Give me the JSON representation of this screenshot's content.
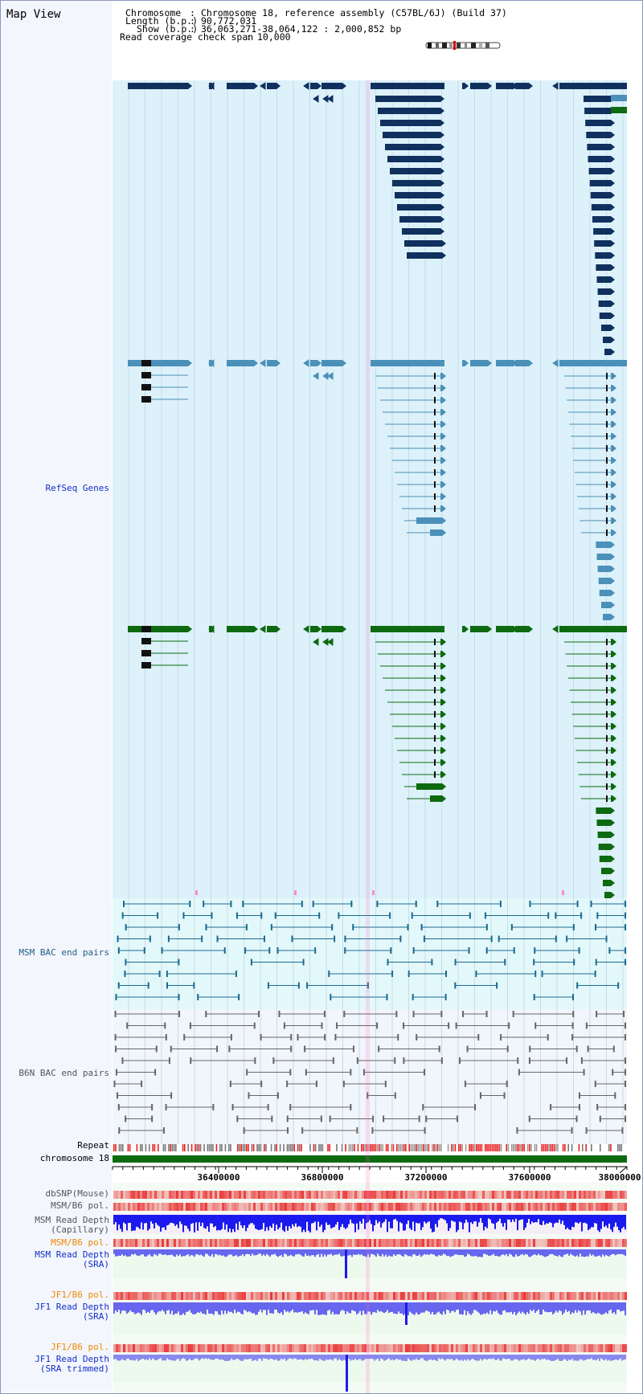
{
  "app": {
    "title": "Map View"
  },
  "header": {
    "chromosome_key": "Chromosome",
    "chromosome_value": "Chromosome 18, reference assembly (C57BL/6J) (Build 37)",
    "length_key": "Length (b.p.)",
    "length_value": "90,772,031",
    "show_key": "Show (b.p.)",
    "show_value": "36,063,271-38,064,122 : 2,000,852 bp",
    "coverage_key": "Read coverage check span",
    "coverage_value": "10,000"
  },
  "tracks": {
    "refseq": "RefSeq Genes",
    "msm_bac": "MSM BAC end pairs",
    "b6n_bac": "B6N BAC end pairs",
    "repeat": "Repeat",
    "chromosome": "chromosome 18",
    "dbsnp": "dbSNP(Mouse)",
    "msm_b6_pol": "MSM/B6 pol.",
    "msm_depth_cap": "MSM Read Depth\n(Capillary)",
    "msm_b6_pol_2": "MSM/B6 pol.",
    "msm_depth_sra": "MSM Read Depth\n(SRA)",
    "jf1_b6_pol": "JF1/B6 pol.",
    "jf1_depth_sra": "JF1 Read Depth\n(SRA)",
    "jf1_b6_pol_2": "JF1/B6 pol.",
    "jf1_depth_trim": "JF1 Read Depth\n(SRA trimmed)"
  },
  "ruler": {
    "ticks": [
      "36400000",
      "36800000",
      "37200000",
      "37600000",
      "38000000"
    ]
  },
  "colors": {
    "gene_navy": "#10305e",
    "gene_light": "#4a90b8",
    "gene_green": "#0e6a10",
    "track_bg": "#dff2fa",
    "bac_bg": "#e4f8fb",
    "b6n_bg": "#f2f6fc",
    "depth_blue": "#1a1aee",
    "depth_violet": "#6666ee",
    "pol_red": "#e83030"
  }
}
